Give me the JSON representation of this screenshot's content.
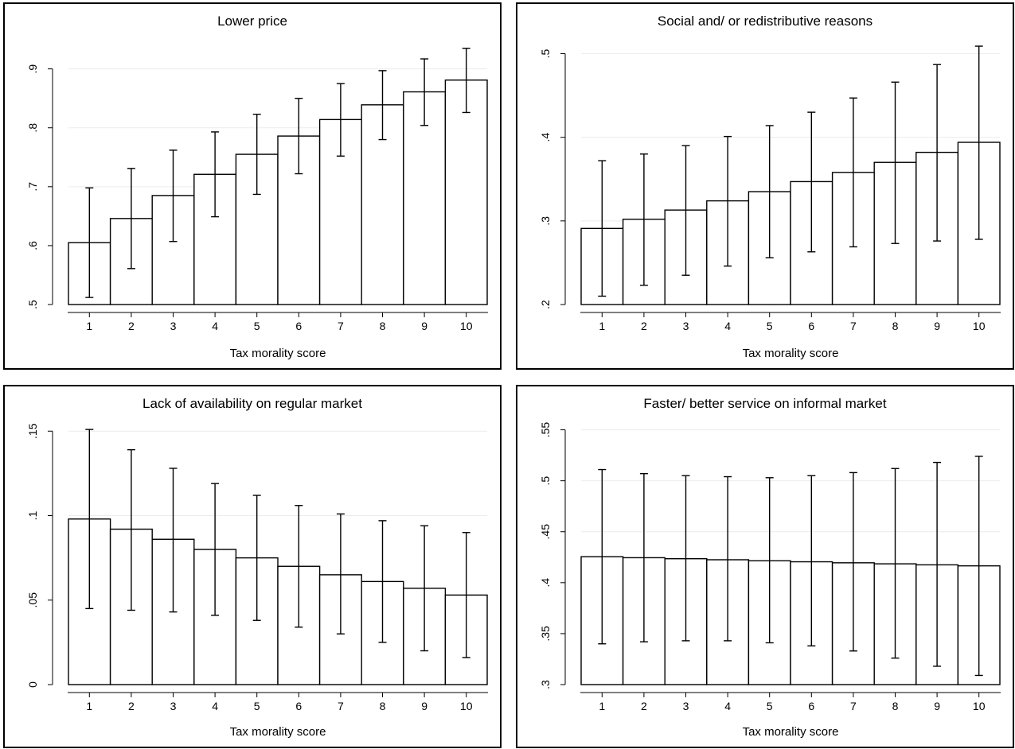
{
  "chart_data": [
    {
      "type": "bar",
      "title": "Lower price",
      "xlabel": "Tax morality score",
      "ylabel": "",
      "categories": [
        "1",
        "2",
        "3",
        "4",
        "5",
        "6",
        "7",
        "8",
        "9",
        "10"
      ],
      "values": [
        0.605,
        0.646,
        0.685,
        0.721,
        0.755,
        0.786,
        0.814,
        0.839,
        0.861,
        0.881
      ],
      "ci_low": [
        0.512,
        0.561,
        0.607,
        0.649,
        0.687,
        0.722,
        0.752,
        0.78,
        0.804,
        0.826
      ],
      "ci_high": [
        0.698,
        0.731,
        0.762,
        0.793,
        0.823,
        0.85,
        0.875,
        0.897,
        0.917,
        0.935
      ],
      "yticks": [
        0.5,
        0.6,
        0.7,
        0.8,
        0.9
      ],
      "ytick_labels": [
        ".5",
        ".6",
        ".7",
        ".8",
        ".9"
      ],
      "ylim": [
        0.5,
        0.94
      ],
      "grid": true
    },
    {
      "type": "bar",
      "title": "Social and/ or redistributive reasons",
      "xlabel": "Tax morality score",
      "ylabel": "",
      "categories": [
        "1",
        "2",
        "3",
        "4",
        "5",
        "6",
        "7",
        "8",
        "9",
        "10"
      ],
      "values": [
        0.291,
        0.302,
        0.313,
        0.324,
        0.335,
        0.347,
        0.358,
        0.37,
        0.382,
        0.394
      ],
      "ci_low": [
        0.21,
        0.223,
        0.235,
        0.246,
        0.256,
        0.263,
        0.269,
        0.273,
        0.276,
        0.278
      ],
      "ci_high": [
        0.372,
        0.38,
        0.39,
        0.401,
        0.414,
        0.43,
        0.447,
        0.466,
        0.487,
        0.509
      ],
      "yticks": [
        0.2,
        0.3,
        0.4,
        0.5
      ],
      "ytick_labels": [
        ".2",
        ".3",
        ".4",
        ".5"
      ],
      "ylim": [
        0.2,
        0.51
      ],
      "grid": true
    },
    {
      "type": "bar",
      "title": "Lack of availability on regular market",
      "xlabel": "Tax morality score",
      "ylabel": "",
      "categories": [
        "1",
        "2",
        "3",
        "4",
        "5",
        "6",
        "7",
        "8",
        "9",
        "10"
      ],
      "values": [
        0.098,
        0.092,
        0.086,
        0.08,
        0.075,
        0.07,
        0.065,
        0.061,
        0.057,
        0.053
      ],
      "ci_low": [
        0.045,
        0.044,
        0.043,
        0.041,
        0.038,
        0.034,
        0.03,
        0.025,
        0.02,
        0.016
      ],
      "ci_high": [
        0.151,
        0.139,
        0.128,
        0.119,
        0.112,
        0.106,
        0.101,
        0.097,
        0.094,
        0.09
      ],
      "yticks": [
        0,
        0.05,
        0.1,
        0.15
      ],
      "ytick_labels": [
        "0",
        ".05",
        ".1",
        ".15"
      ],
      "ylim": [
        0,
        0.152
      ],
      "grid": true
    },
    {
      "type": "bar",
      "title": "Faster/ better service on informal market",
      "xlabel": "Tax morality score",
      "ylabel": "",
      "categories": [
        "1",
        "2",
        "3",
        "4",
        "5",
        "6",
        "7",
        "8",
        "9",
        "10"
      ],
      "values": [
        0.4255,
        0.4245,
        0.4235,
        0.4225,
        0.4215,
        0.4205,
        0.4195,
        0.4185,
        0.4175,
        0.4165
      ],
      "ci_low": [
        0.34,
        0.342,
        0.343,
        0.343,
        0.341,
        0.338,
        0.333,
        0.326,
        0.318,
        0.309
      ],
      "ci_high": [
        0.511,
        0.507,
        0.505,
        0.504,
        0.503,
        0.505,
        0.508,
        0.512,
        0.518,
        0.524
      ],
      "yticks": [
        0.3,
        0.35,
        0.4,
        0.45,
        0.5,
        0.55
      ],
      "ytick_labels": [
        ".3",
        ".35",
        ".4",
        ".45",
        ".5",
        ".55"
      ],
      "ylim": [
        0.3,
        0.552
      ],
      "grid": true
    }
  ]
}
